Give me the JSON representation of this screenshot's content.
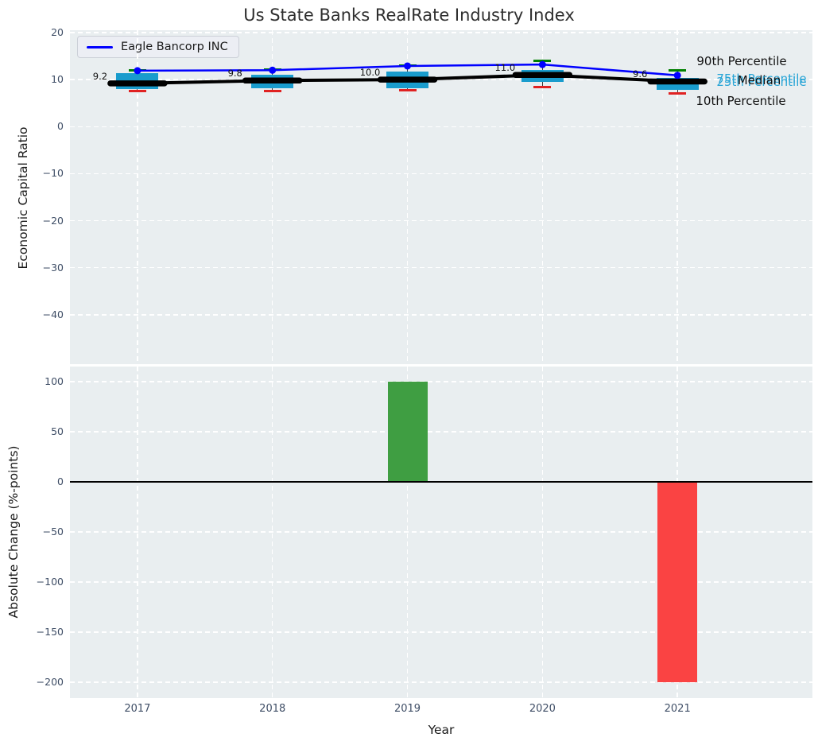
{
  "title": "Us State Banks RealRate Industry Index",
  "legend": {
    "label": "Eagle Bancorp INC",
    "line_color": "#0000ff"
  },
  "colors": {
    "plot_background": "#e9eef0",
    "grid": "#ffffff",
    "eagle_line": "#0000ff",
    "median_line": "#000000",
    "iqr_box": "#199ccd",
    "p90_cap": "#008000",
    "p10_cap": "#e02222",
    "positive_bar": "#3f9e42",
    "negative_bar": "#fa4343",
    "percentile_text": "#29a5d6",
    "tick_text": "#3f4e66"
  },
  "chart_data": [
    {
      "type": "line",
      "subtype": "percentile-band-boxes-with-lines",
      "title": "Us State Banks RealRate Industry Index",
      "xlabel": "",
      "ylabel": "Economic Capital Ratio",
      "x": [
        2017,
        2018,
        2019,
        2020,
        2021
      ],
      "xlim": [
        2016.5,
        2022.0
      ],
      "ylim": [
        -50.5,
        20.5
      ],
      "yticks": [
        20,
        10,
        0,
        -10,
        -20,
        -30,
        -40
      ],
      "grid": true,
      "legend_position": "upper-left",
      "series": [
        {
          "name": "Eagle Bancorp INC",
          "color": "#0000ff",
          "marker": "circle",
          "values": [
            11.9,
            12.0,
            12.9,
            13.2,
            10.9
          ]
        },
        {
          "name": "Median",
          "color": "#000000",
          "values": [
            9.2,
            9.8,
            10.0,
            11.0,
            9.6
          ],
          "labels": [
            "9.2",
            "9.8",
            "10.0",
            "11.0",
            "9.6"
          ]
        }
      ],
      "percentiles": {
        "p90": [
          12.0,
          12.2,
          12.9,
          14.0,
          12.0
        ],
        "p75": [
          11.3,
          11.1,
          11.7,
          12.0,
          10.3
        ],
        "p25": [
          8.0,
          8.2,
          8.2,
          9.5,
          7.8
        ],
        "p10": [
          7.5,
          7.5,
          7.7,
          8.4,
          7.0
        ]
      },
      "annotations": [
        {
          "text": "90th Percentile",
          "color": "#111111",
          "x": 845,
          "y": 39
        },
        {
          "text": "75th Percentile",
          "color": "#29a5d6",
          "x": 870,
          "y": 61
        },
        {
          "text": "25th Percentile",
          "color": "#29a5d6",
          "x": 870,
          "y": 65
        },
        {
          "text": "Median",
          "color": "#111111",
          "x": 867,
          "y": 63
        },
        {
          "text": "10th Percentile",
          "color": "#111111",
          "x": 844,
          "y": 89
        }
      ]
    },
    {
      "type": "bar",
      "xlabel": "Year",
      "ylabel": "Absolute Change (%-points)",
      "categories": [
        2017,
        2018,
        2019,
        2020,
        2021
      ],
      "values": [
        null,
        null,
        100,
        null,
        -200
      ],
      "xlim": [
        2016.5,
        2022.0
      ],
      "ylim": [
        -216,
        115
      ],
      "yticks": [
        100,
        50,
        0,
        -50,
        -100,
        -150,
        -200
      ],
      "grid": true,
      "zero_line": 0
    }
  ]
}
